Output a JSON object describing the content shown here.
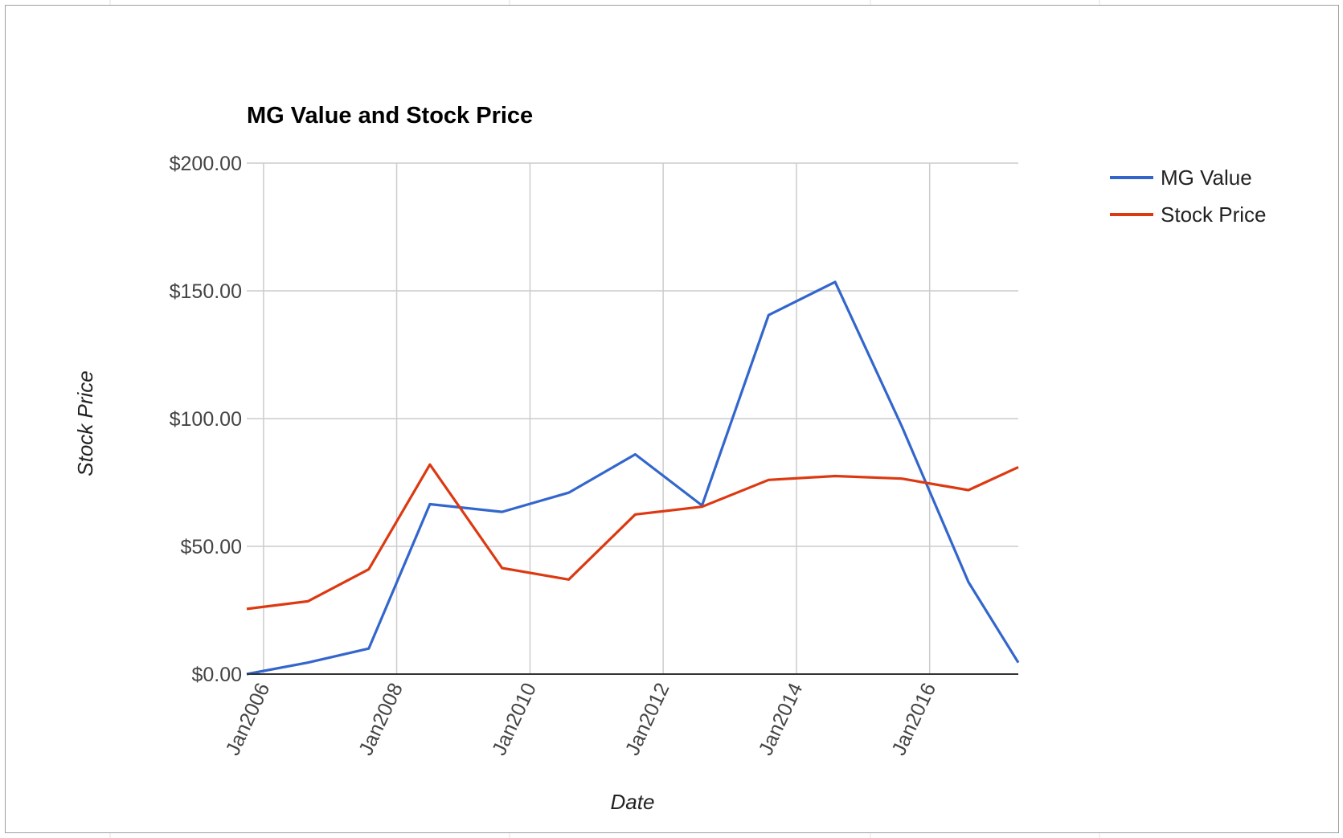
{
  "chart_data": {
    "type": "line",
    "title": "MG Value and Stock Price",
    "xlabel": "Date",
    "ylabel": "Stock Price",
    "x": [
      "2005-10-01",
      "2006-09-01",
      "2007-08-01",
      "2008-07-01",
      "2009-08-01",
      "2010-08-01",
      "2011-08-01",
      "2012-08-01",
      "2013-08-01",
      "2014-08-01",
      "2015-08-01",
      "2016-08-01",
      "2017-05-01"
    ],
    "xticks": [
      {
        "label": "Jan2006",
        "date": "2006-01-01"
      },
      {
        "label": "Jan2008",
        "date": "2008-01-01"
      },
      {
        "label": "Jan2010",
        "date": "2010-01-01"
      },
      {
        "label": "Jan2012",
        "date": "2012-01-01"
      },
      {
        "label": "Jan2014",
        "date": "2014-01-01"
      },
      {
        "label": "Jan2016",
        "date": "2016-01-01"
      }
    ],
    "yticks": [
      {
        "label": "$0.00",
        "value": 0
      },
      {
        "label": "$50.00",
        "value": 50
      },
      {
        "label": "$100.00",
        "value": 100
      },
      {
        "label": "$150.00",
        "value": 150
      },
      {
        "label": "$200.00",
        "value": 200
      }
    ],
    "ylim": [
      0,
      200
    ],
    "grid": true,
    "legend_position": "right",
    "series": [
      {
        "name": "MG Value",
        "color": "#3366cc",
        "values": [
          0,
          4.5,
          10,
          66.5,
          63.5,
          71,
          86,
          66,
          140.5,
          153.5,
          97,
          36,
          4.5
        ]
      },
      {
        "name": "Stock Price",
        "color": "#dc3912",
        "values": [
          25.5,
          28.5,
          41,
          82,
          41.5,
          37,
          62.5,
          65.5,
          76,
          77.5,
          76.5,
          72,
          81
        ]
      }
    ]
  }
}
